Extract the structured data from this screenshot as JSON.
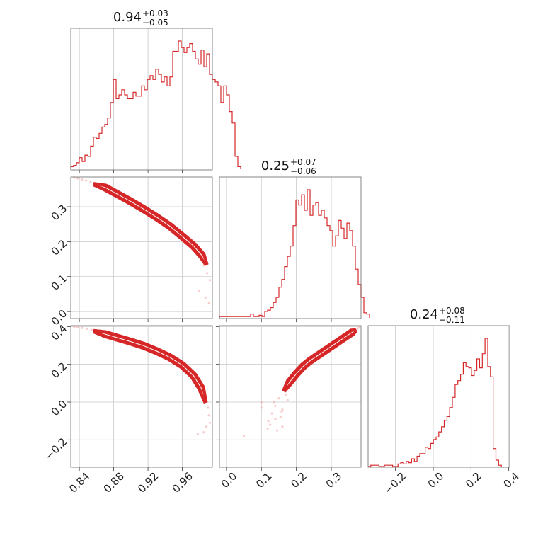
{
  "colors": {
    "series": "#d62728",
    "scatter": "#f4a3a3",
    "grid": "#c8c8c8"
  },
  "chart_data": {
    "type": "corner",
    "titles": [
      {
        "value": "0.94",
        "plus": "+0.03",
        "minus": "−0.05"
      },
      {
        "value": "0.25",
        "plus": "+0.07",
        "minus": "−0.06"
      },
      {
        "value": "0.24",
        "plus": "+0.08",
        "minus": "−0.11"
      }
    ],
    "ranges": [
      [
        0.83,
        0.995
      ],
      [
        -0.02,
        0.385
      ],
      [
        -0.345,
        0.405
      ]
    ],
    "ticks": [
      [
        0.84,
        0.88,
        0.92,
        0.96
      ],
      [
        0.0,
        0.1,
        0.2,
        0.3
      ],
      [
        -0.2,
        0.0,
        0.2,
        0.4
      ]
    ],
    "tick_labels": [
      [
        "0.84",
        "0.88",
        "0.92",
        "0.96"
      ],
      [
        "0.0",
        "0.1",
        "0.2",
        "0.3"
      ],
      [
        "−0.2",
        "0.0",
        "0.2",
        "0.4"
      ]
    ],
    "histograms": [
      {
        "x_start": 0.83,
        "bin_width": 0.0033,
        "counts": [
          0.02,
          0.03,
          0.05,
          0.09,
          0.06,
          0.11,
          0.1,
          0.18,
          0.25,
          0.24,
          0.28,
          0.33,
          0.35,
          0.4,
          0.52,
          0.7,
          0.55,
          0.58,
          0.62,
          0.58,
          0.55,
          0.55,
          0.6,
          0.57,
          0.57,
          0.65,
          0.62,
          0.7,
          0.73,
          0.7,
          0.78,
          0.74,
          0.68,
          0.72,
          0.65,
          0.72,
          0.92,
          0.92,
          1.0,
          0.95,
          0.91,
          0.95,
          0.98,
          0.92,
          0.86,
          0.82,
          0.93,
          0.8,
          0.9,
          0.74,
          0.7,
          0.68,
          0.65,
          0.52,
          0.65,
          0.58,
          0.45,
          0.36,
          0.1,
          0.02
        ]
      },
      {
        "x_start": -0.02,
        "bin_width": 0.0081,
        "counts": [
          0.01,
          0.01,
          0.01,
          0.01,
          0.01,
          0.01,
          0.01,
          0.01,
          0.01,
          0.01,
          0.01,
          0.03,
          0.01,
          0.01,
          0.02,
          0.01,
          0.05,
          0.06,
          0.08,
          0.12,
          0.16,
          0.24,
          0.3,
          0.4,
          0.48,
          0.56,
          0.72,
          0.92,
          0.88,
          0.96,
          0.84,
          1.0,
          0.8,
          0.88,
          0.9,
          0.8,
          0.84,
          0.78,
          0.72,
          0.68,
          0.56,
          0.64,
          0.76,
          0.7,
          0.62,
          0.74,
          0.68,
          0.56,
          0.38,
          0.26,
          0.16,
          0.04,
          0.03
        ]
      },
      {
        "x_start": -0.345,
        "bin_width": 0.0144,
        "counts": [
          0.0,
          0.01,
          0.01,
          0.01,
          0.0,
          0.0,
          0.01,
          0.01,
          0.01,
          0.0,
          0.0,
          0.02,
          0.03,
          0.02,
          0.04,
          0.03,
          0.06,
          0.04,
          0.08,
          0.1,
          0.1,
          0.15,
          0.14,
          0.18,
          0.21,
          0.23,
          0.27,
          0.31,
          0.36,
          0.39,
          0.46,
          0.54,
          0.64,
          0.67,
          0.72,
          0.81,
          0.78,
          0.77,
          0.71,
          0.75,
          0.84,
          0.77,
          0.88,
          1.0,
          0.78,
          0.7,
          0.14,
          0.05,
          0.01
        ]
      }
    ],
    "pairs": [
      {
        "x_param": 0,
        "y_param": 1,
        "curve": [
          [
            0.857,
            0.364
          ],
          [
            0.87,
            0.355
          ],
          [
            0.885,
            0.335
          ],
          [
            0.9,
            0.315
          ],
          [
            0.915,
            0.293
          ],
          [
            0.93,
            0.27
          ],
          [
            0.945,
            0.245
          ],
          [
            0.96,
            0.215
          ],
          [
            0.973,
            0.188
          ],
          [
            0.983,
            0.16
          ],
          [
            0.988,
            0.135
          ]
        ],
        "scatter": [
          [
            0.834,
            0.383
          ],
          [
            0.838,
            0.381
          ],
          [
            0.843,
            0.378
          ],
          [
            0.848,
            0.375
          ],
          [
            0.853,
            0.371
          ],
          [
            0.866,
            0.352
          ],
          [
            0.875,
            0.346
          ],
          [
            0.892,
            0.326
          ],
          [
            0.912,
            0.295
          ],
          [
            0.935,
            0.262
          ],
          [
            0.95,
            0.235
          ],
          [
            0.968,
            0.195
          ],
          [
            0.985,
            0.132
          ],
          [
            0.989,
            0.11
          ],
          [
            0.992,
            0.09
          ],
          [
            0.979,
            0.06
          ],
          [
            0.987,
            0.04
          ],
          [
            0.991,
            0.025
          ],
          [
            0.986,
            0.14
          ],
          [
            0.976,
            0.17
          ]
        ]
      },
      {
        "x_param": 0,
        "y_param": 2,
        "curve": [
          [
            0.857,
            0.375
          ],
          [
            0.87,
            0.36
          ],
          [
            0.885,
            0.34
          ],
          [
            0.9,
            0.32
          ],
          [
            0.915,
            0.298
          ],
          [
            0.93,
            0.27
          ],
          [
            0.945,
            0.238
          ],
          [
            0.96,
            0.195
          ],
          [
            0.973,
            0.14
          ],
          [
            0.982,
            0.075
          ],
          [
            0.987,
            0.0
          ]
        ],
        "scatter": [
          [
            0.834,
            0.399
          ],
          [
            0.838,
            0.397
          ],
          [
            0.843,
            0.393
          ],
          [
            0.849,
            0.389
          ],
          [
            0.854,
            0.382
          ],
          [
            0.866,
            0.37
          ],
          [
            0.877,
            0.353
          ],
          [
            0.895,
            0.328
          ],
          [
            0.915,
            0.298
          ],
          [
            0.94,
            0.252
          ],
          [
            0.958,
            0.2
          ],
          [
            0.975,
            0.12
          ],
          [
            0.985,
            0.03
          ],
          [
            0.99,
            -0.03
          ],
          [
            0.991,
            -0.07
          ],
          [
            0.992,
            -0.11
          ],
          [
            0.988,
            -0.13
          ],
          [
            0.978,
            -0.17
          ],
          [
            0.985,
            -0.16
          ],
          [
            0.983,
            0.09
          ]
        ]
      },
      {
        "x_param": 1,
        "y_param": 2,
        "curve": [
          [
            0.165,
            0.06
          ],
          [
            0.18,
            0.105
          ],
          [
            0.2,
            0.15
          ],
          [
            0.22,
            0.19
          ],
          [
            0.24,
            0.22
          ],
          [
            0.26,
            0.245
          ],
          [
            0.28,
            0.27
          ],
          [
            0.3,
            0.295
          ],
          [
            0.32,
            0.32
          ],
          [
            0.34,
            0.345
          ],
          [
            0.36,
            0.37
          ],
          [
            0.37,
            0.38
          ]
        ],
        "scatter": [
          [
            0.15,
            0.02
          ],
          [
            0.14,
            -0.02
          ],
          [
            0.13,
            -0.06
          ],
          [
            0.155,
            -0.08
          ],
          [
            0.12,
            -0.1
          ],
          [
            0.16,
            -0.04
          ],
          [
            0.145,
            -0.15
          ],
          [
            0.1,
            -0.03
          ],
          [
            0.05,
            -0.18
          ],
          [
            0.17,
            0.04
          ],
          [
            0.135,
            0.0
          ],
          [
            0.125,
            -0.12
          ],
          [
            0.175,
            0.01
          ],
          [
            0.158,
            -0.05
          ],
          [
            0.375,
            0.39
          ],
          [
            0.38,
            0.395
          ],
          [
            0.365,
            0.385
          ],
          [
            0.33,
            0.34
          ],
          [
            0.25,
            0.235
          ],
          [
            0.2,
            0.16
          ],
          [
            0.16,
            -0.13
          ],
          [
            0.14,
            -0.09
          ],
          [
            0.118,
            -0.14
          ],
          [
            0.1,
            0.0
          ]
        ]
      }
    ]
  }
}
